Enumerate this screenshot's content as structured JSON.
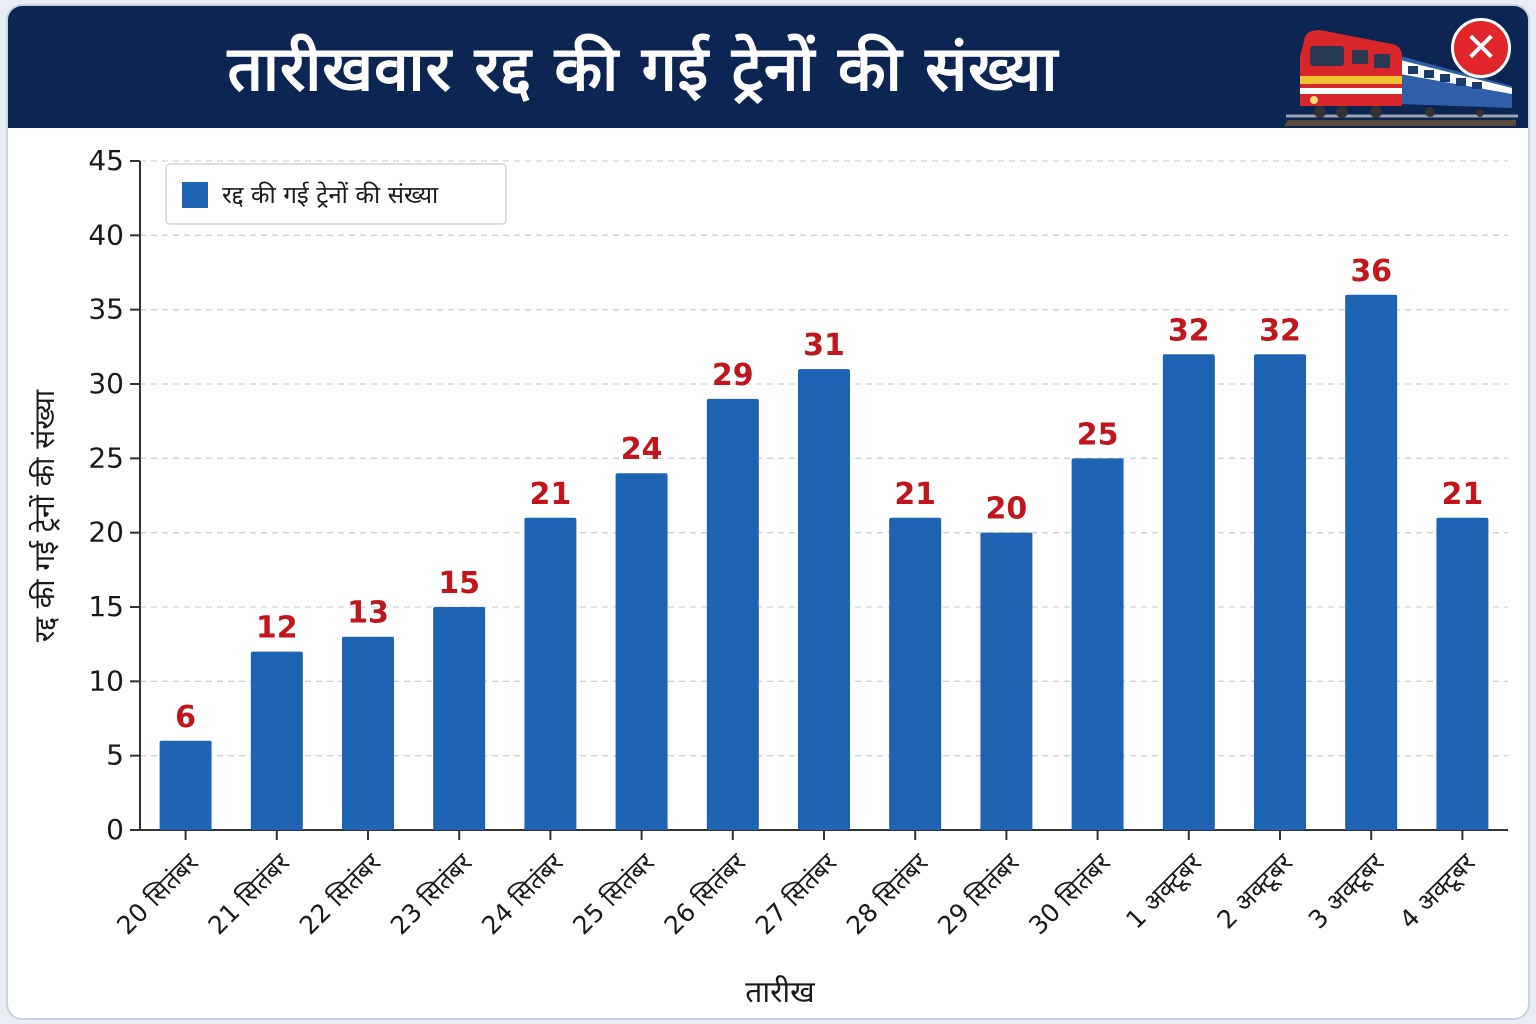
{
  "header": {
    "title": "तारीखवार रद्द की गई ट्रेनों की संख्या",
    "train_icon": "train-icon",
    "close_icon": "close-icon"
  },
  "colors": {
    "header_bg": "#0d2552",
    "bar": "#1f63b3",
    "value_label": "#c0161c",
    "close": "#e0252b"
  },
  "chart_data": {
    "type": "bar",
    "title": "",
    "xlabel": "तारीख",
    "ylabel": "रद्द की गई ट्रेनों की संख्या",
    "categories": [
      "20 सितंबर",
      "21 सितंबर",
      "22 सितंबर",
      "23 सितंबर",
      "24 सितंबर",
      "25 सितंबर",
      "26 सितंबर",
      "27 सितंबर",
      "28 सितंबर",
      "29 सितंबर",
      "30 सितंबर",
      "1 अक्टूबर",
      "2 अक्टूबर",
      "3 अक्टूबर",
      "4 अक्टूबर"
    ],
    "series": [
      {
        "name": "रद्द की गई ट्रेनों की संख्या",
        "values": [
          6,
          12,
          13,
          15,
          21,
          24,
          29,
          31,
          21,
          20,
          25,
          32,
          32,
          36,
          21
        ]
      }
    ],
    "ylim": [
      0,
      45
    ],
    "yticks": [
      0,
      5,
      10,
      15,
      20,
      25,
      30,
      35,
      40,
      45
    ],
    "grid": true,
    "legend_position": "top-left",
    "data_labels": true
  }
}
